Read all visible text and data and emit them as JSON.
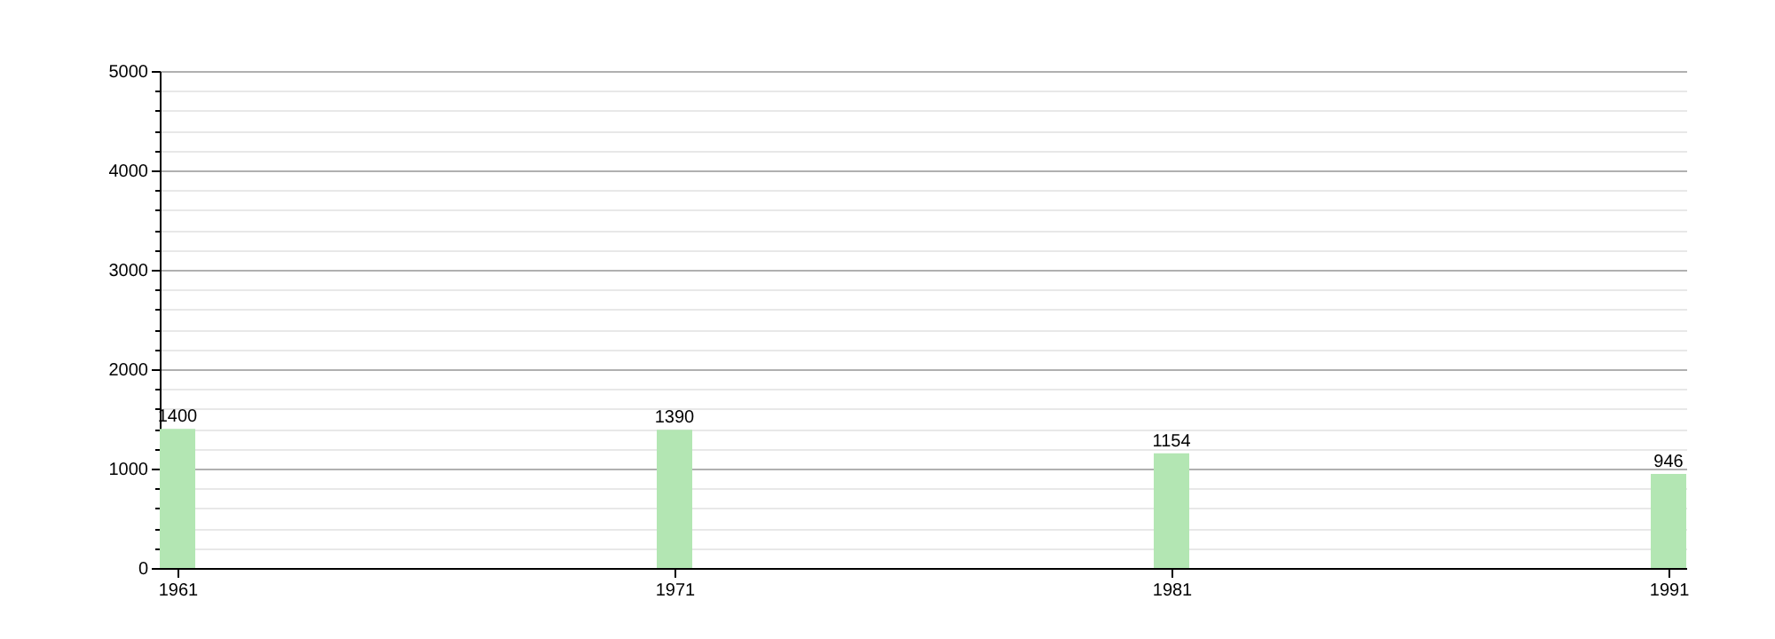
{
  "chart_data": {
    "type": "bar",
    "categories": [
      "1961",
      "1971",
      "1981",
      "1991"
    ],
    "values": [
      1400,
      1390,
      1154,
      946
    ],
    "color": "#b3e6b3",
    "ylim": [
      0,
      5000
    ],
    "yticks": [
      0,
      {
        "value": 200,
        "label": null
      },
      {
        "value": 400,
        "label": null
      },
      {
        "value": 600,
        "label": null
      },
      {
        "value": 800,
        "label": null
      },
      1000,
      {
        "value": 1200,
        "label": null
      },
      {
        "value": 1400,
        "label": null
      },
      {
        "value": 1600,
        "label": null
      },
      {
        "value": 1800,
        "label": null
      },
      2000,
      {
        "value": 2200,
        "label": null
      },
      {
        "value": 2400,
        "label": null
      },
      {
        "value": 2600,
        "label": null
      },
      {
        "value": 2800,
        "label": null
      },
      3000,
      {
        "value": 3200,
        "label": null
      },
      {
        "value": 3400,
        "label": null
      },
      {
        "value": 3600,
        "label": null
      },
      {
        "value": 3800,
        "label": null
      },
      4000,
      {
        "value": 4200,
        "label": null
      },
      {
        "value": 4400,
        "label": null
      },
      {
        "value": 4600,
        "label": null
      },
      {
        "value": 4800,
        "label": null
      },
      5000
    ],
    "grid": "y",
    "data_labels": true
  }
}
